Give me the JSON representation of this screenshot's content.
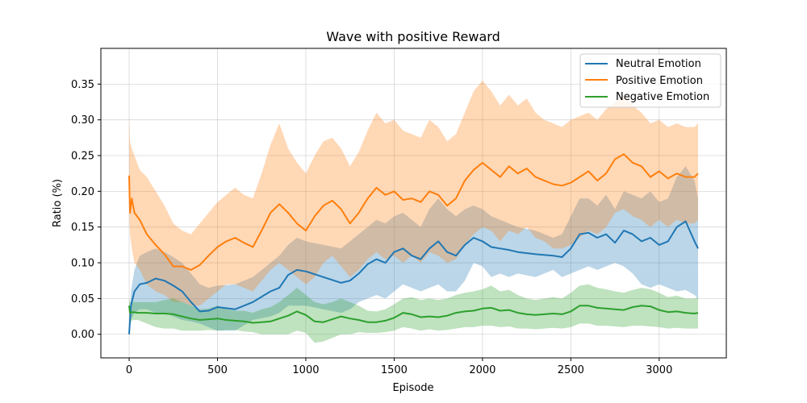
{
  "chart_data": {
    "type": "line",
    "title": "Wave with positive Reward",
    "xlabel": "Episode",
    "ylabel": "Ratio (%)",
    "xlim": [
      -160,
      3380
    ],
    "ylim": [
      -0.033,
      0.4
    ],
    "xticks": [
      0,
      500,
      1000,
      1500,
      2000,
      2500,
      3000
    ],
    "xtick_labels": [
      "0",
      "500",
      "1000",
      "1500",
      "2000",
      "2500",
      "3000"
    ],
    "yticks": [
      0.0,
      0.05,
      0.1,
      0.15,
      0.2,
      0.25,
      0.3,
      0.35
    ],
    "ytick_labels": [
      "0.00",
      "0.05",
      "0.10",
      "0.15",
      "0.20",
      "0.25",
      "0.30",
      "0.35"
    ],
    "grid": true,
    "legend_position": "top-right",
    "series": [
      {
        "name": "Neutral Emotion",
        "color": "#1f77b4",
        "x": [
          0,
          10,
          30,
          60,
          100,
          150,
          200,
          250,
          300,
          350,
          400,
          450,
          500,
          600,
          700,
          800,
          850,
          900,
          950,
          1000,
          1100,
          1200,
          1250,
          1300,
          1350,
          1400,
          1450,
          1500,
          1550,
          1600,
          1650,
          1700,
          1750,
          1800,
          1850,
          1900,
          1950,
          2000,
          2050,
          2100,
          2150,
          2200,
          2300,
          2400,
          2450,
          2500,
          2550,
          2600,
          2650,
          2700,
          2750,
          2800,
          2850,
          2900,
          2950,
          3000,
          3050,
          3100,
          3150,
          3200,
          3220
        ],
        "y": [
          0.0,
          0.04,
          0.06,
          0.07,
          0.072,
          0.078,
          0.075,
          0.068,
          0.06,
          0.045,
          0.032,
          0.033,
          0.038,
          0.035,
          0.045,
          0.06,
          0.065,
          0.083,
          0.09,
          0.088,
          0.08,
          0.072,
          0.075,
          0.085,
          0.098,
          0.105,
          0.1,
          0.115,
          0.12,
          0.11,
          0.105,
          0.12,
          0.13,
          0.115,
          0.11,
          0.125,
          0.135,
          0.13,
          0.122,
          0.12,
          0.118,
          0.115,
          0.112,
          0.11,
          0.108,
          0.12,
          0.14,
          0.142,
          0.135,
          0.14,
          0.128,
          0.145,
          0.14,
          0.13,
          0.135,
          0.125,
          0.13,
          0.15,
          0.158,
          0.13,
          0.12
        ],
        "band_lower": [
          0.0,
          0.02,
          0.03,
          0.035,
          0.035,
          0.03,
          0.03,
          0.025,
          0.02,
          0.018,
          0.015,
          0.01,
          0.005,
          0.005,
          0.02,
          0.025,
          0.03,
          0.04,
          0.04,
          0.04,
          0.035,
          0.03,
          0.035,
          0.045,
          0.05,
          0.055,
          0.05,
          0.06,
          0.07,
          0.065,
          0.06,
          0.065,
          0.07,
          0.06,
          0.06,
          0.075,
          0.1,
          0.095,
          0.08,
          0.085,
          0.08,
          0.085,
          0.08,
          0.09,
          0.08,
          0.085,
          0.09,
          0.095,
          0.09,
          0.095,
          0.1,
          0.095,
          0.085,
          0.07,
          0.065,
          0.07,
          0.065,
          0.06,
          0.062,
          0.055,
          0.05
        ],
        "band_upper": [
          0.0,
          0.06,
          0.09,
          0.11,
          0.115,
          0.12,
          0.115,
          0.108,
          0.1,
          0.085,
          0.07,
          0.065,
          0.068,
          0.07,
          0.08,
          0.1,
          0.11,
          0.125,
          0.135,
          0.13,
          0.125,
          0.12,
          0.13,
          0.14,
          0.15,
          0.16,
          0.155,
          0.165,
          0.17,
          0.16,
          0.15,
          0.175,
          0.19,
          0.175,
          0.165,
          0.175,
          0.18,
          0.175,
          0.165,
          0.16,
          0.155,
          0.15,
          0.145,
          0.135,
          0.14,
          0.165,
          0.19,
          0.19,
          0.18,
          0.195,
          0.175,
          0.2,
          0.195,
          0.19,
          0.2,
          0.185,
          0.19,
          0.22,
          0.235,
          0.215,
          0.19
        ]
      },
      {
        "name": "Positive Emotion",
        "color": "#ff7f0e",
        "x": [
          0,
          5,
          15,
          30,
          60,
          100,
          150,
          200,
          250,
          300,
          350,
          400,
          450,
          500,
          550,
          600,
          650,
          700,
          750,
          800,
          850,
          900,
          950,
          1000,
          1050,
          1100,
          1150,
          1200,
          1250,
          1300,
          1350,
          1400,
          1450,
          1500,
          1550,
          1600,
          1650,
          1700,
          1750,
          1800,
          1850,
          1900,
          1950,
          2000,
          2050,
          2100,
          2150,
          2200,
          2250,
          2300,
          2350,
          2400,
          2450,
          2500,
          2550,
          2600,
          2650,
          2700,
          2750,
          2800,
          2850,
          2900,
          2950,
          3000,
          3050,
          3100,
          3150,
          3200,
          3220
        ],
        "y": [
          0.222,
          0.17,
          0.19,
          0.17,
          0.16,
          0.14,
          0.125,
          0.112,
          0.095,
          0.095,
          0.09,
          0.097,
          0.11,
          0.122,
          0.13,
          0.135,
          0.128,
          0.122,
          0.145,
          0.17,
          0.182,
          0.17,
          0.155,
          0.145,
          0.165,
          0.18,
          0.187,
          0.175,
          0.155,
          0.17,
          0.19,
          0.205,
          0.195,
          0.2,
          0.188,
          0.19,
          0.185,
          0.2,
          0.195,
          0.18,
          0.19,
          0.215,
          0.23,
          0.24,
          0.23,
          0.22,
          0.235,
          0.225,
          0.232,
          0.22,
          0.215,
          0.21,
          0.208,
          0.212,
          0.22,
          0.228,
          0.215,
          0.225,
          0.245,
          0.252,
          0.24,
          0.235,
          0.22,
          0.228,
          0.218,
          0.225,
          0.22,
          0.22,
          0.225
        ],
        "band_lower": [
          0.17,
          0.14,
          0.12,
          0.1,
          0.09,
          0.07,
          0.06,
          0.055,
          0.045,
          0.045,
          0.04,
          0.04,
          0.05,
          0.06,
          0.07,
          0.07,
          0.065,
          0.06,
          0.075,
          0.09,
          0.1,
          0.09,
          0.08,
          0.07,
          0.08,
          0.1,
          0.11,
          0.095,
          0.08,
          0.09,
          0.105,
          0.115,
          0.105,
          0.11,
          0.1,
          0.11,
          0.1,
          0.115,
          0.11,
          0.1,
          0.105,
          0.125,
          0.14,
          0.15,
          0.145,
          0.13,
          0.145,
          0.14,
          0.15,
          0.135,
          0.13,
          0.12,
          0.12,
          0.125,
          0.135,
          0.145,
          0.14,
          0.15,
          0.17,
          0.175,
          0.165,
          0.16,
          0.15,
          0.16,
          0.15,
          0.16,
          0.155,
          0.155,
          0.16
        ],
        "band_upper": [
          0.3,
          0.27,
          0.26,
          0.25,
          0.23,
          0.22,
          0.2,
          0.18,
          0.155,
          0.145,
          0.14,
          0.155,
          0.17,
          0.185,
          0.195,
          0.205,
          0.195,
          0.19,
          0.225,
          0.265,
          0.295,
          0.26,
          0.24,
          0.225,
          0.25,
          0.27,
          0.275,
          0.26,
          0.235,
          0.255,
          0.285,
          0.31,
          0.295,
          0.3,
          0.285,
          0.28,
          0.275,
          0.3,
          0.29,
          0.27,
          0.28,
          0.31,
          0.34,
          0.355,
          0.34,
          0.32,
          0.335,
          0.32,
          0.33,
          0.31,
          0.3,
          0.295,
          0.29,
          0.3,
          0.305,
          0.31,
          0.3,
          0.315,
          0.325,
          0.335,
          0.32,
          0.31,
          0.295,
          0.3,
          0.29,
          0.295,
          0.29,
          0.29,
          0.295
        ]
      },
      {
        "name": "Negative Emotion",
        "color": "#2ca02c",
        "x": [
          0,
          5,
          20,
          50,
          100,
          150,
          200,
          250,
          300,
          350,
          400,
          450,
          500,
          550,
          600,
          650,
          700,
          750,
          800,
          850,
          900,
          950,
          1000,
          1050,
          1100,
          1150,
          1200,
          1250,
          1300,
          1350,
          1400,
          1450,
          1500,
          1550,
          1600,
          1650,
          1700,
          1750,
          1800,
          1850,
          1900,
          1950,
          2000,
          2050,
          2100,
          2150,
          2200,
          2250,
          2300,
          2350,
          2400,
          2450,
          2500,
          2550,
          2600,
          2650,
          2700,
          2750,
          2800,
          2850,
          2900,
          2950,
          3000,
          3050,
          3100,
          3150,
          3200,
          3220
        ],
        "y": [
          0.04,
          0.03,
          0.031,
          0.03,
          0.03,
          0.029,
          0.029,
          0.028,
          0.025,
          0.022,
          0.02,
          0.021,
          0.022,
          0.02,
          0.019,
          0.018,
          0.016,
          0.017,
          0.018,
          0.022,
          0.026,
          0.032,
          0.027,
          0.018,
          0.017,
          0.021,
          0.025,
          0.022,
          0.02,
          0.017,
          0.017,
          0.019,
          0.023,
          0.03,
          0.028,
          0.024,
          0.025,
          0.024,
          0.026,
          0.03,
          0.032,
          0.033,
          0.036,
          0.037,
          0.033,
          0.034,
          0.03,
          0.028,
          0.027,
          0.028,
          0.029,
          0.028,
          0.032,
          0.04,
          0.04,
          0.037,
          0.036,
          0.035,
          0.034,
          0.038,
          0.04,
          0.039,
          0.034,
          0.031,
          0.032,
          0.03,
          0.029,
          0.03
        ],
        "band_lower": [
          0.02,
          0.015,
          0.02,
          0.02,
          0.015,
          0.01,
          0.008,
          0.008,
          0.005,
          0.005,
          0.005,
          0.006,
          0.005,
          0.006,
          0.006,
          0.004,
          0.003,
          0.0,
          0.0,
          0.0,
          0.0,
          0.005,
          0.002,
          -0.012,
          -0.01,
          -0.005,
          0.0,
          0.0,
          0.003,
          0.002,
          0.002,
          0.003,
          0.005,
          0.01,
          0.008,
          0.005,
          0.007,
          0.005,
          0.006,
          0.008,
          0.01,
          0.01,
          0.012,
          0.012,
          0.01,
          0.011,
          0.008,
          0.008,
          0.007,
          0.008,
          0.009,
          0.008,
          0.01,
          0.015,
          0.015,
          0.012,
          0.012,
          0.011,
          0.01,
          0.012,
          0.012,
          0.011,
          0.01,
          0.008,
          0.009,
          0.008,
          0.008,
          0.008
        ],
        "band_upper": [
          0.05,
          0.045,
          0.045,
          0.045,
          0.045,
          0.045,
          0.048,
          0.05,
          0.045,
          0.04,
          0.035,
          0.036,
          0.04,
          0.035,
          0.033,
          0.033,
          0.03,
          0.035,
          0.038,
          0.045,
          0.055,
          0.065,
          0.055,
          0.045,
          0.042,
          0.045,
          0.05,
          0.045,
          0.04,
          0.033,
          0.032,
          0.035,
          0.042,
          0.05,
          0.052,
          0.048,
          0.05,
          0.048,
          0.05,
          0.055,
          0.058,
          0.06,
          0.063,
          0.068,
          0.06,
          0.062,
          0.055,
          0.05,
          0.048,
          0.05,
          0.052,
          0.05,
          0.058,
          0.068,
          0.07,
          0.065,
          0.063,
          0.06,
          0.058,
          0.062,
          0.065,
          0.063,
          0.058,
          0.052,
          0.054,
          0.05,
          0.05,
          0.052
        ]
      }
    ]
  }
}
